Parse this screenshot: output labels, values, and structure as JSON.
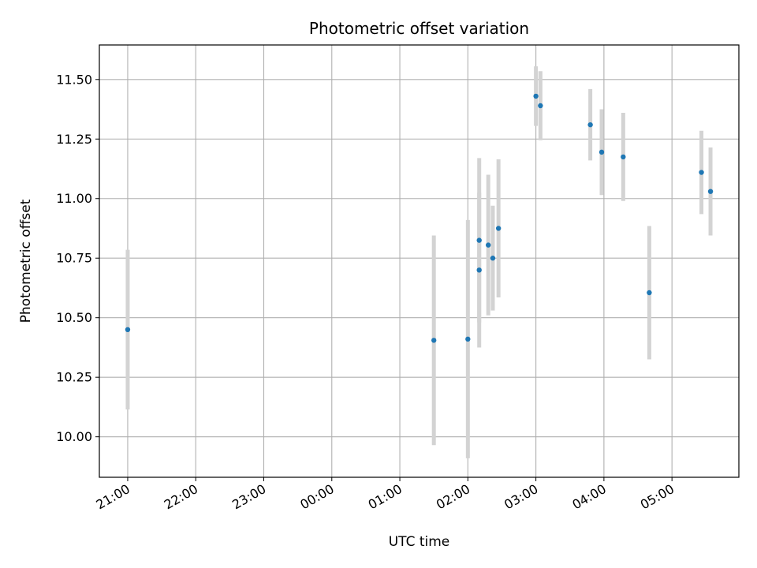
{
  "chart_data": {
    "type": "scatter",
    "title": "Photometric offset variation",
    "xlabel": "UTC time",
    "ylabel": "Photometric offset",
    "x_axis": "time (UTC), day 0 evening to day 1 morning",
    "x_tick_labels": [
      "21:00",
      "22:00",
      "23:00",
      "00:00",
      "01:00",
      "02:00",
      "03:00",
      "04:00",
      "05:00"
    ],
    "x_range": [
      "20:35",
      "05:59"
    ],
    "y_range": [
      9.83,
      11.645
    ],
    "y_ticks": [
      10.0,
      10.25,
      10.5,
      10.75,
      11.0,
      11.25,
      11.5
    ],
    "y_tick_labels": [
      "10.00",
      "10.25",
      "10.50",
      "10.75",
      "11.00",
      "11.25",
      "11.50"
    ],
    "grid": true,
    "marker_color": "#1f77b4",
    "errorbar_color": "#d3d3d3",
    "series": [
      {
        "points": [
          {
            "x": "21:00",
            "y": 10.45,
            "yerr": 0.335
          },
          {
            "x": "01:30",
            "y": 10.405,
            "yerr": 0.44
          },
          {
            "x": "02:00",
            "y": 10.41,
            "yerr": 0.5
          },
          {
            "x": "02:10",
            "y": 10.825,
            "yerr": 0.345
          },
          {
            "x": "02:10",
            "y": 10.7,
            "yerr": 0.325
          },
          {
            "x": "02:18",
            "y": 10.805,
            "yerr": 0.295
          },
          {
            "x": "02:22",
            "y": 10.75,
            "yerr": 0.22
          },
          {
            "x": "02:27",
            "y": 10.875,
            "yerr": 0.29
          },
          {
            "x": "03:00",
            "y": 11.43,
            "yerr": 0.125
          },
          {
            "x": "03:04",
            "y": 11.39,
            "yerr": 0.145
          },
          {
            "x": "03:48",
            "y": 11.31,
            "yerr": 0.15
          },
          {
            "x": "03:58",
            "y": 11.195,
            "yerr": 0.18
          },
          {
            "x": "04:17",
            "y": 11.175,
            "yerr": 0.185
          },
          {
            "x": "04:40",
            "y": 10.605,
            "yerr": 0.28
          },
          {
            "x": "05:26",
            "y": 11.11,
            "yerr": 0.175
          },
          {
            "x": "05:34",
            "y": 11.03,
            "yerr": 0.185
          }
        ]
      }
    ]
  }
}
